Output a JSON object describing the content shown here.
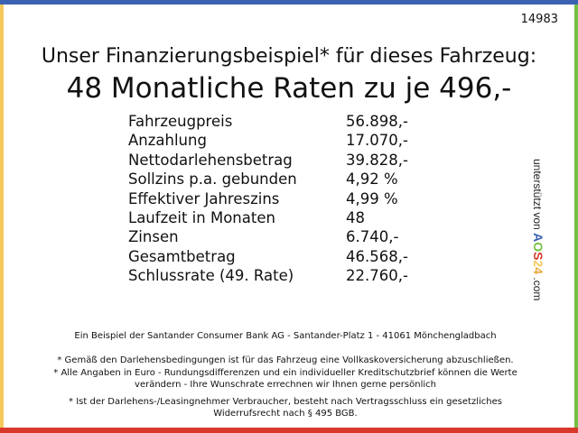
{
  "id_number": "14983",
  "headline": "Unser Finanzierungsbeispiel* für dieses Fahrzeug:",
  "subheadline": "48 Monatliche Raten zu je 496,-",
  "rows": [
    {
      "label": "Fahrzeugpreis",
      "value": "56.898,-"
    },
    {
      "label": "Anzahlung",
      "value": "17.070,-"
    },
    {
      "label": "Nettodarlehensbetrag",
      "value": "39.828,-"
    },
    {
      "label": "Sollzins p.a. gebunden",
      "value": "4,92 %"
    },
    {
      "label": "Effektiver Jahreszins",
      "value": "4,99 %"
    },
    {
      "label": "Laufzeit in Monaten",
      "value": "48"
    },
    {
      "label": "Zinsen",
      "value": "6.740,-"
    },
    {
      "label": "Gesamtbetrag",
      "value": "46.568,-"
    },
    {
      "label": "Schlussrate (49. Rate)",
      "value": "22.760,-"
    }
  ],
  "side": {
    "prefix": "unterstützt von",
    "logo": [
      "A",
      "O",
      "S",
      "2",
      "4"
    ],
    "suffix": ".com",
    "logo_colors": [
      "#3b62b2",
      "#74c043",
      "#d8392b",
      "#f6c95c",
      "#e8a93a"
    ]
  },
  "footer": {
    "bank": "Ein Beispiel der Santander Consumer Bank AG - Santander-Platz 1 - 41061 Mönchengladbach",
    "note1": "* Gemäß den Darlehensbedingungen ist für das Fahrzeug eine Vollkaskoversicherung abzuschließen.",
    "note2a": "* Alle Angaben in Euro - Rundungsdifferenzen und ein individueller Kreditschutzbrief können die Werte",
    "note2b": "verändern - Ihre Wunschrate errechnen wir Ihnen gerne persönlich",
    "note3a": "* Ist der Darlehens-/Leasingnehmer Verbraucher, besteht nach Vertragsschluss ein gesetzliches",
    "note3b": "Widerrufsrecht nach § 495 BGB."
  },
  "colors": {
    "top": "#3b62b2",
    "left": "#f6c95c",
    "right": "#74c043",
    "bottom": "#d8392b"
  }
}
